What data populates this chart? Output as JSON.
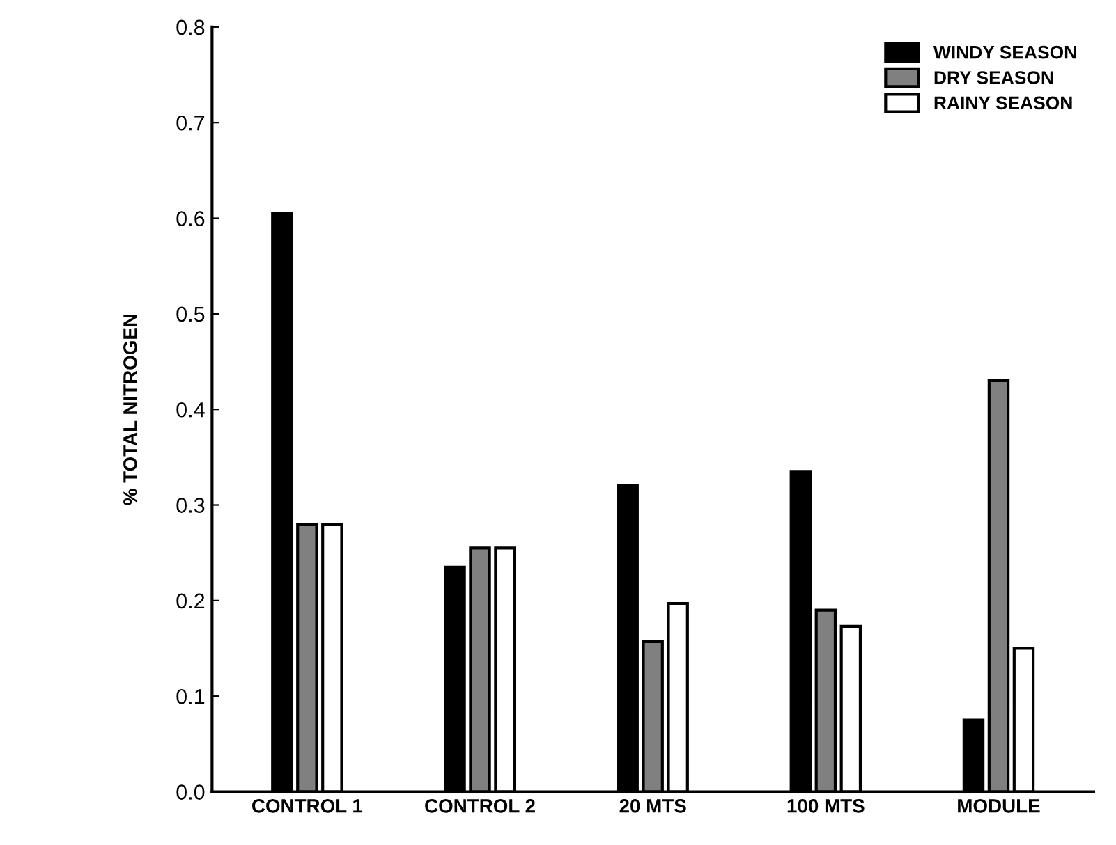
{
  "chart_data": {
    "type": "bar",
    "ylabel": "% TOTAL NITROGEN",
    "categories": [
      "CONTROL 1",
      "CONTROL 2",
      "20 MTS",
      "100 MTS",
      "MODULE"
    ],
    "series": [
      {
        "name": "WINDY SEASON",
        "color": "#000000",
        "values": [
          0.605,
          0.235,
          0.32,
          0.335,
          0.075
        ]
      },
      {
        "name": "DRY SEASON",
        "color": "#808080",
        "values": [
          0.28,
          0.255,
          0.157,
          0.19,
          0.43
        ]
      },
      {
        "name": "RAINY SEASON",
        "color": "#ffffff",
        "values": [
          0.28,
          0.255,
          0.197,
          0.173,
          0.15
        ]
      }
    ],
    "ylim": [
      0,
      0.8
    ],
    "yticks": [
      {
        "value": 0,
        "label": "0.0"
      },
      0.1,
      0.2,
      0.3,
      0.4,
      0.5,
      0.6,
      0.7,
      0.8
    ],
    "grid": false,
    "legend": "top right"
  }
}
